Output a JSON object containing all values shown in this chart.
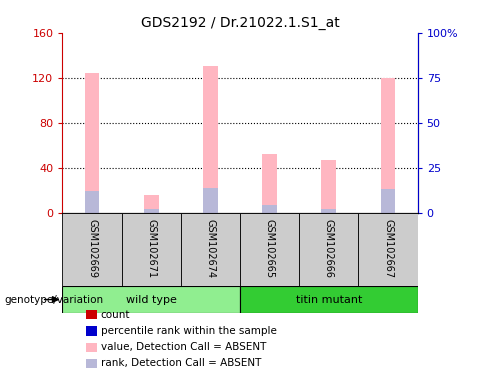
{
  "title": "GDS2192 / Dr.21022.1.S1_at",
  "samples": [
    "GSM102669",
    "GSM102671",
    "GSM102674",
    "GSM102665",
    "GSM102666",
    "GSM102667"
  ],
  "ylim_left": [
    0,
    160
  ],
  "ylim_right": [
    0,
    100
  ],
  "yticks_left": [
    0,
    40,
    80,
    120,
    160
  ],
  "yticks_right": [
    0,
    25,
    50,
    75,
    100
  ],
  "yticklabels_left": [
    "0",
    "40",
    "80",
    "120",
    "160"
  ],
  "yticklabels_right": [
    "0",
    "25",
    "50",
    "75",
    "100%"
  ],
  "absent_value_heights": [
    124,
    16,
    130,
    52,
    47,
    120
  ],
  "absent_rank_heights": [
    20,
    4,
    22,
    7,
    4,
    21
  ],
  "bar_width": 0.25,
  "absent_value_color": "#ffb6c1",
  "absent_rank_color": "#b8b8d8",
  "count_color": "#cc0000",
  "rank_color": "#0000cc",
  "bg_color": "#cccccc",
  "wt_color": "#90ee90",
  "tm_color": "#33cc33",
  "left_axis_color": "#cc0000",
  "right_axis_color": "#0000cc",
  "legend_items": [
    {
      "label": "count",
      "color": "#cc0000"
    },
    {
      "label": "percentile rank within the sample",
      "color": "#0000cc"
    },
    {
      "label": "value, Detection Call = ABSENT",
      "color": "#ffb6c1"
    },
    {
      "label": "rank, Detection Call = ABSENT",
      "color": "#b8b8d8"
    }
  ],
  "figsize": [
    4.8,
    3.84
  ],
  "dpi": 100
}
